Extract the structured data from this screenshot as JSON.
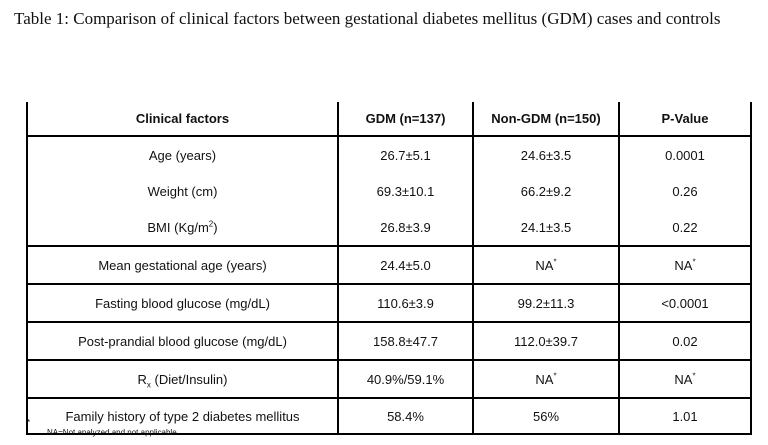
{
  "caption": "Table 1: Comparison of clinical factors between gestational diabetes mellitus (GDM) cases and controls",
  "table": {
    "headers": [
      "Clinical factors",
      "GDM (n=137)",
      "Non-GDM (n=150)",
      "P-Value"
    ],
    "rows": [
      {
        "factor": "Age (years)",
        "gdm": "26.7±5.1",
        "nongdm": "24.6±3.5",
        "p": "0.0001"
      },
      {
        "factor": "Weight (cm)",
        "gdm": "69.3±10.1",
        "nongdm": "66.2±9.2",
        "p": "0.26"
      },
      {
        "factor_prefix": "BMI (Kg/m",
        "factor_sup": "2",
        "factor_suffix": ")",
        "gdm": "26.8±3.9",
        "nongdm": "24.1±3.5",
        "p": "0.22"
      },
      {
        "factor": "Mean gestational age (years)",
        "gdm": "24.4±5.0",
        "nongdm": "NA",
        "nongdm_sup": "*",
        "p": "NA",
        "p_sup": "*"
      },
      {
        "factor": "Fasting blood glucose (mg/dL)",
        "gdm": "110.6±3.9",
        "nongdm": "99.2±11.3",
        "p": "<0.0001"
      },
      {
        "factor": "Post-prandial blood glucose (mg/dL)",
        "gdm": "158.8±47.7",
        "nongdm": "112.0±39.7",
        "p": "0.02"
      },
      {
        "factor_prefix": "R",
        "factor_sub": "x",
        "factor_suffix": " (Diet/Insulin)",
        "gdm": "40.9%/59.1%",
        "nongdm": "NA",
        "nongdm_sup": "*",
        "p": "NA",
        "p_sup": "*"
      },
      {
        "factor": "Family history of type 2 diabetes mellitus",
        "gdm": "58.4%",
        "nongdm": "56%",
        "p": "1.01"
      }
    ]
  },
  "footnote": {
    "marker": "*",
    "text": "NA=Not analyzed and not applicable"
  }
}
